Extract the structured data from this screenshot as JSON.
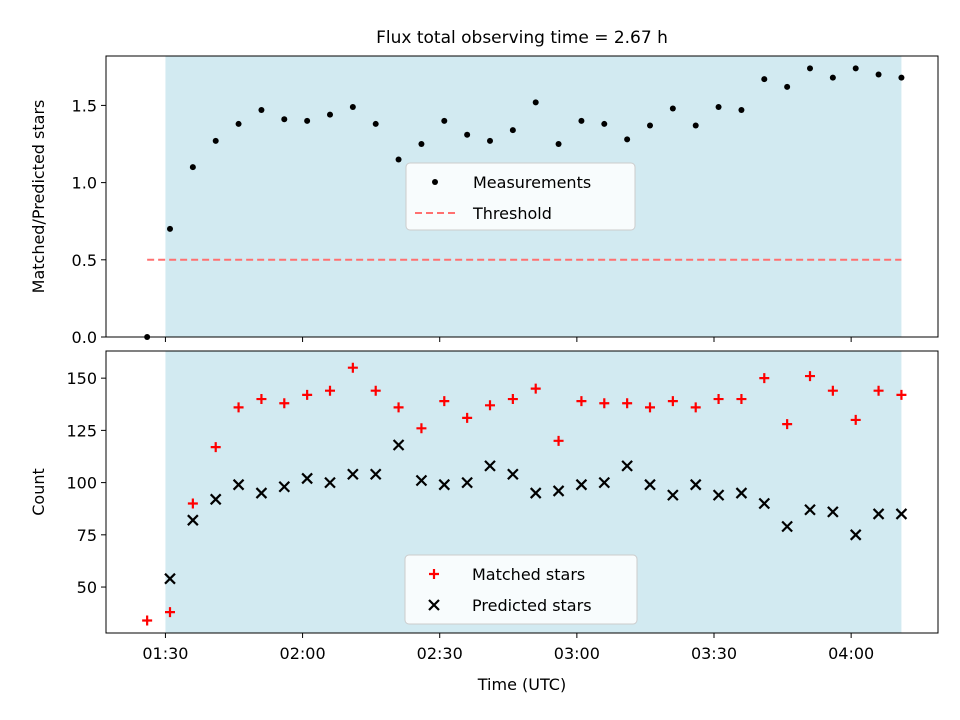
{
  "title": "Flux total observing time = 2.67 h",
  "colors": {
    "shade": "#add8e6",
    "measurement": "#000000",
    "threshold": "#ff7070",
    "matched": "#ff0000",
    "predicted": "#000000"
  },
  "chart_data": [
    {
      "type": "scatter",
      "ylabel": "Matched/Predicted stars",
      "ylim": [
        0,
        1.82
      ],
      "yticks": [
        0.0,
        0.5,
        1.0,
        1.5
      ],
      "ytick_labels": [
        "0.0",
        "0.5",
        "1.0",
        "1.5"
      ],
      "shaded_span": [
        "01:30",
        "04:11"
      ],
      "legend_placement": "center",
      "series": [
        {
          "name": "Measurements",
          "marker": "dot",
          "x": [
            "01:26",
            "01:31",
            "01:36",
            "01:41",
            "01:46",
            "01:51",
            "01:56",
            "02:01",
            "02:06",
            "02:11",
            "02:16",
            "02:21",
            "02:26",
            "02:31",
            "02:36",
            "02:41",
            "02:46",
            "02:51",
            "02:56",
            "03:01",
            "03:06",
            "03:11",
            "03:16",
            "03:21",
            "03:26",
            "03:31",
            "03:36",
            "03:41",
            "03:46",
            "03:51",
            "03:56",
            "04:01",
            "04:06",
            "04:11"
          ],
          "values": [
            0.0,
            0.7,
            1.1,
            1.27,
            1.38,
            1.47,
            1.41,
            1.4,
            1.44,
            1.49,
            1.38,
            1.15,
            1.25,
            1.4,
            1.31,
            1.27,
            1.34,
            1.52,
            1.25,
            1.4,
            1.38,
            1.28,
            1.37,
            1.48,
            1.37,
            1.49,
            1.47,
            1.67,
            1.62,
            1.74,
            1.68,
            1.74,
            1.7,
            1.68
          ]
        },
        {
          "name": "Threshold",
          "style": "dashed",
          "x": [
            "01:26",
            "04:11"
          ],
          "values": [
            0.5,
            0.5
          ]
        }
      ]
    },
    {
      "type": "scatter",
      "ylabel": "Count",
      "xlabel": "Time (UTC)",
      "ylim": [
        28,
        163
      ],
      "yticks": [
        50,
        75,
        100,
        125,
        150
      ],
      "ytick_labels": [
        "50",
        "75",
        "100",
        "125",
        "150"
      ],
      "xticks": [
        "01:30",
        "02:00",
        "02:30",
        "03:00",
        "03:30",
        "04:00"
      ],
      "xlim": [
        "01:17",
        "04:19"
      ],
      "shaded_span": [
        "01:30",
        "04:11"
      ],
      "legend_placement": "lower center",
      "series": [
        {
          "name": "Matched stars",
          "marker": "plus",
          "x": [
            "01:26",
            "01:31",
            "01:36",
            "01:41",
            "01:46",
            "01:51",
            "01:56",
            "02:01",
            "02:06",
            "02:11",
            "02:16",
            "02:21",
            "02:26",
            "02:31",
            "02:36",
            "02:41",
            "02:46",
            "02:51",
            "02:56",
            "03:01",
            "03:06",
            "03:11",
            "03:16",
            "03:21",
            "03:26",
            "03:31",
            "03:36",
            "03:41",
            "03:46",
            "03:51",
            "03:56",
            "04:01",
            "04:06",
            "04:11"
          ],
          "values": [
            34,
            38,
            90,
            117,
            136,
            140,
            138,
            142,
            144,
            155,
            144,
            136,
            126,
            139,
            131,
            137,
            140,
            145,
            120,
            139,
            138,
            138,
            136,
            139,
            136,
            140,
            140,
            150,
            128,
            151,
            144,
            130,
            144,
            142
          ]
        },
        {
          "name": "Predicted stars",
          "marker": "x",
          "x": [
            "01:31",
            "01:36",
            "01:41",
            "01:46",
            "01:51",
            "01:56",
            "02:01",
            "02:06",
            "02:11",
            "02:16",
            "02:21",
            "02:26",
            "02:31",
            "02:36",
            "02:41",
            "02:46",
            "02:51",
            "02:56",
            "03:01",
            "03:06",
            "03:11",
            "03:16",
            "03:21",
            "03:26",
            "03:31",
            "03:36",
            "03:41",
            "03:46",
            "03:51",
            "03:56",
            "04:01",
            "04:06",
            "04:11"
          ],
          "values": [
            54,
            82,
            92,
            99,
            95,
            98,
            102,
            100,
            104,
            104,
            118,
            101,
            99,
            100,
            108,
            104,
            95,
            96,
            99,
            100,
            108,
            99,
            94,
            99,
            94,
            95,
            90,
            79,
            87,
            86,
            75,
            85,
            85
          ]
        }
      ]
    }
  ]
}
